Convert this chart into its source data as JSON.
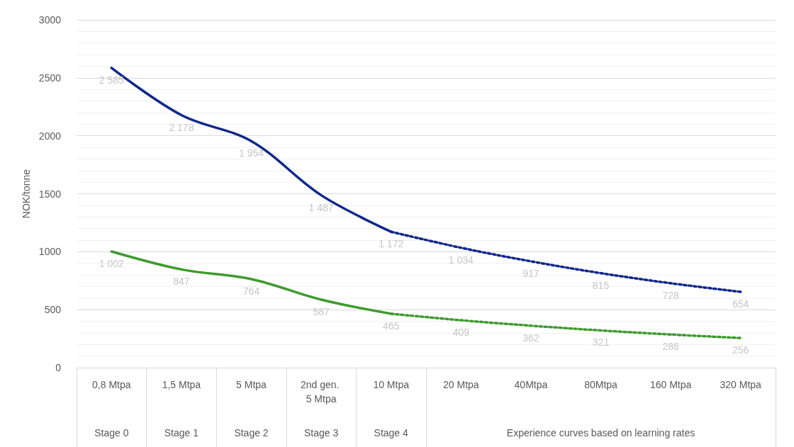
{
  "chart_data": {
    "type": "line",
    "ylabel": "NOK/tonne",
    "categories": [
      "0,8 Mtpa",
      "1,5 Mtpa",
      "5 Mtpa",
      "2nd gen. 5 Mtpa",
      "10 Mtpa",
      "20 Mtpa",
      "40Mtpa",
      "80Mtpa",
      "160 Mtpa",
      "320 Mtpa"
    ],
    "series": [
      {
        "color": "#10288a",
        "line_style": "solid",
        "values": [
          2585,
          2178,
          1954,
          1487,
          1172,
          null,
          null,
          null,
          null,
          null
        ],
        "value_labels": [
          "2 585",
          "2 178",
          "1 954",
          "1 487",
          "1 172",
          null,
          null,
          null,
          null,
          null
        ]
      },
      {
        "color": "#10288a",
        "line_style": "dotted",
        "values": [
          null,
          null,
          null,
          null,
          1172,
          1034,
          917,
          815,
          728,
          654
        ],
        "value_labels": [
          null,
          null,
          null,
          null,
          null,
          "1 034",
          "917",
          "815",
          "728",
          "654"
        ]
      },
      {
        "color": "#3f9a2e",
        "line_style": "solid",
        "values": [
          1002,
          847,
          764,
          587,
          465,
          null,
          null,
          null,
          null,
          null
        ],
        "value_labels": [
          "1 002",
          "847",
          "764",
          "587",
          "465",
          null,
          null,
          null,
          null,
          null
        ]
      },
      {
        "color": "#3f9a2e",
        "line_style": "dotted",
        "values": [
          null,
          null,
          null,
          null,
          465,
          409,
          362,
          321,
          286,
          256
        ],
        "value_labels": [
          null,
          null,
          null,
          null,
          null,
          "409",
          "362",
          "321",
          "286",
          "256"
        ]
      }
    ],
    "annotations": [
      "Stage 0",
      "Stage 1",
      "Stage 2",
      "Stage 3",
      "Stage 4",
      "Experience curves based on learning rates"
    ],
    "ylim": [
      0,
      3000
    ],
    "yticks": [
      0,
      500,
      1000,
      1500,
      2000,
      2500,
      3000
    ],
    "grid": "y",
    "marker": "none"
  }
}
